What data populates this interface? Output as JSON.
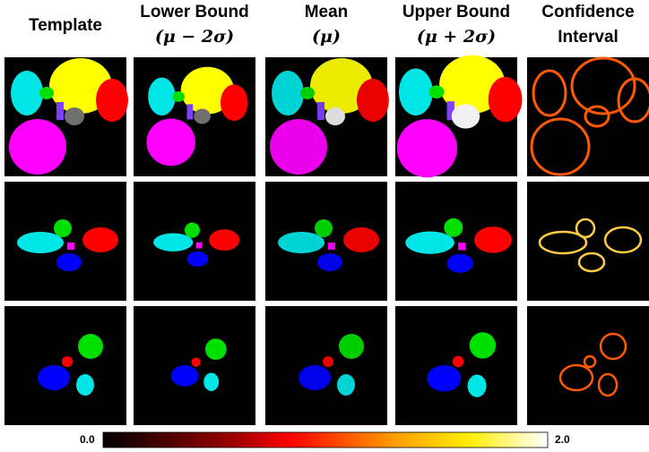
{
  "columns": [
    {
      "lines": [
        "Template"
      ]
    },
    {
      "lines": [
        "Lower Bound",
        "(μ − 2σ)"
      ]
    },
    {
      "lines": [
        "Mean",
        "(μ)"
      ]
    },
    {
      "lines": [
        "Upper Bound",
        "(μ + 2σ)"
      ]
    },
    {
      "lines": [
        "Confidence",
        "Interval"
      ]
    }
  ],
  "colorbar": {
    "ticks": [
      {
        "value": 0,
        "label": "0.0"
      },
      {
        "value": 2,
        "label": "2.0"
      }
    ]
  }
}
